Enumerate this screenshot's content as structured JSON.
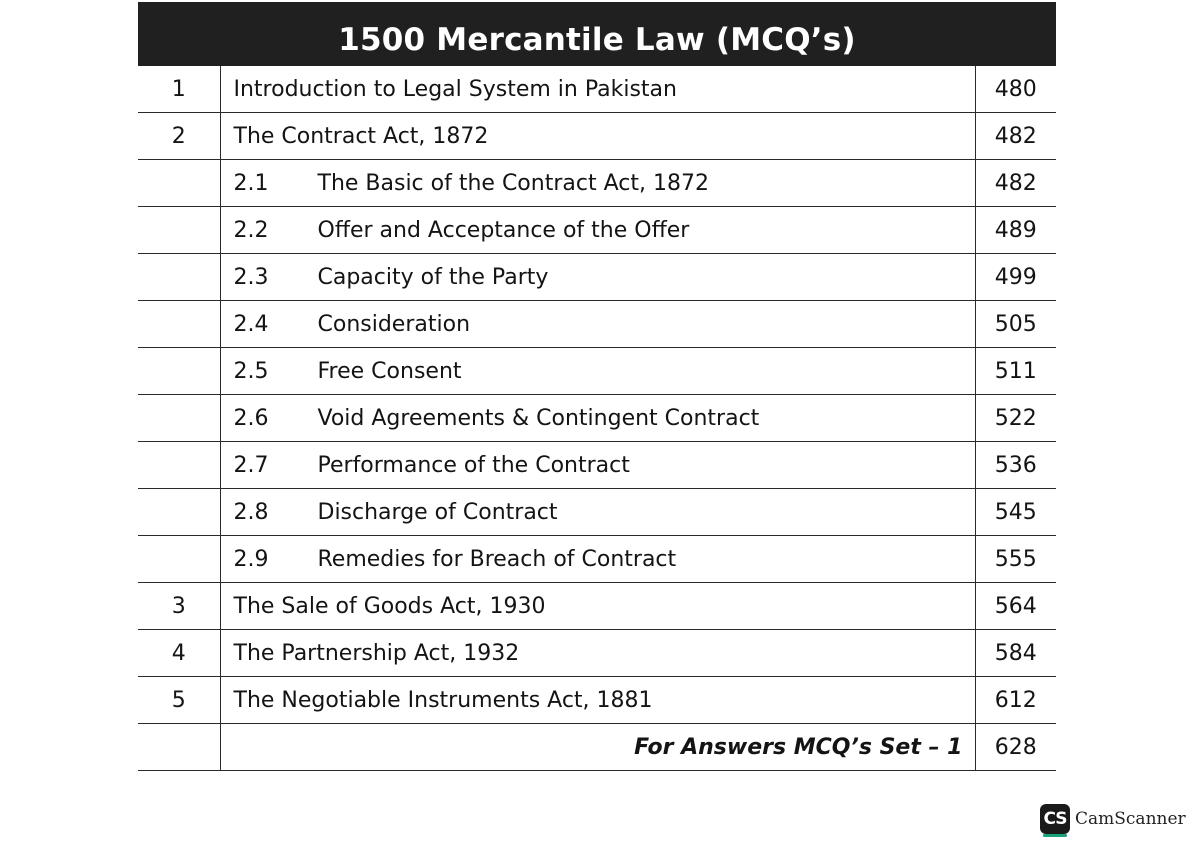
{
  "title": "1500 Mercantile Law (MCQ’s)",
  "rows": [
    {
      "num": "1",
      "sub": "",
      "title": "Introduction to Legal System in Pakistan",
      "page": "480"
    },
    {
      "num": "2",
      "sub": "",
      "title": "The Contract Act, 1872",
      "page": "482"
    },
    {
      "num": "",
      "sub": "2.1",
      "title": "The Basic of the Contract Act, 1872",
      "page": "482"
    },
    {
      "num": "",
      "sub": "2.2",
      "title": "Offer and Acceptance of the Offer",
      "page": "489"
    },
    {
      "num": "",
      "sub": "2.3",
      "title": "Capacity of the Party",
      "page": "499"
    },
    {
      "num": "",
      "sub": "2.4",
      "title": "Consideration",
      "page": "505"
    },
    {
      "num": "",
      "sub": "2.5",
      "title": "Free Consent",
      "page": "511"
    },
    {
      "num": "",
      "sub": "2.6",
      "title": "Void Agreements & Contingent Contract",
      "page": "522"
    },
    {
      "num": "",
      "sub": "2.7",
      "title": "Performance of the Contract",
      "page": "536"
    },
    {
      "num": "",
      "sub": "2.8",
      "title": "Discharge of Contract",
      "page": "545"
    },
    {
      "num": "",
      "sub": "2.9",
      "title": "Remedies for Breach of Contract",
      "page": "555"
    },
    {
      "num": "3",
      "sub": "",
      "title": "The Sale of Goods Act, 1930",
      "page": "564"
    },
    {
      "num": "4",
      "sub": "",
      "title": "The Partnership Act, 1932",
      "page": "584"
    },
    {
      "num": "5",
      "sub": "",
      "title": "The Negotiable Instruments Act, 1881",
      "page": "612"
    }
  ],
  "footer": {
    "title": "For Answers MCQ’s Set – 1",
    "page": "628"
  },
  "watermark": {
    "badge": "CS",
    "text": "CamScanner"
  }
}
